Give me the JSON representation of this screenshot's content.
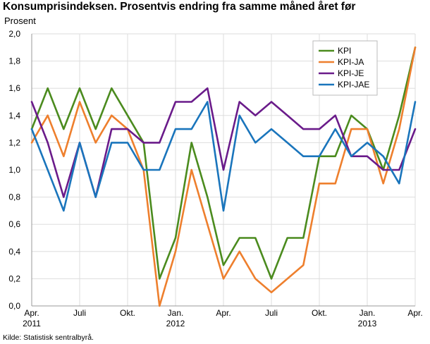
{
  "chart_data": {
    "type": "line",
    "title": "Konsumprisindeksen. Prosentvis endring fra samme måned året før",
    "ylabel": "Prosent",
    "xlabel": "",
    "source": "Kilde: Statistisk sentralbyrå.",
    "ylim": [
      0,
      2.0
    ],
    "y_ticks": [
      "0,0",
      "0,2",
      "0,4",
      "0,6",
      "0,8",
      "1,0",
      "1,2",
      "1,4",
      "1,6",
      "1,8",
      "2,0"
    ],
    "x_ticks": [
      {
        "index": 0,
        "label": "Apr.",
        "sub": "2011"
      },
      {
        "index": 3,
        "label": "Juli",
        "sub": ""
      },
      {
        "index": 6,
        "label": "Okt.",
        "sub": ""
      },
      {
        "index": 9,
        "label": "Jan.",
        "sub": "2012"
      },
      {
        "index": 12,
        "label": "Apr.",
        "sub": ""
      },
      {
        "index": 15,
        "label": "Juli",
        "sub": ""
      },
      {
        "index": 18,
        "label": "Okt.",
        "sub": ""
      },
      {
        "index": 21,
        "label": "Jan.",
        "sub": "2013"
      },
      {
        "index": 24,
        "label": "Apr.",
        "sub": ""
      }
    ],
    "series": [
      {
        "name": "KPI",
        "color": "#4b8b1e",
        "values": [
          1.3,
          1.6,
          1.3,
          1.6,
          1.3,
          1.6,
          1.4,
          1.2,
          0.2,
          0.5,
          1.2,
          0.8,
          0.3,
          0.5,
          0.5,
          0.2,
          0.5,
          0.5,
          1.1,
          1.1,
          1.4,
          1.3,
          1.0,
          1.4,
          1.9
        ]
      },
      {
        "name": "KPI-JA",
        "color": "#ee7f2d",
        "values": [
          1.2,
          1.4,
          1.1,
          1.5,
          1.2,
          1.4,
          1.3,
          1.0,
          0.0,
          0.4,
          1.0,
          0.6,
          0.2,
          0.4,
          0.2,
          0.1,
          0.2,
          0.3,
          0.9,
          0.9,
          1.3,
          1.3,
          0.9,
          1.3,
          1.9
        ]
      },
      {
        "name": "KPI-JE",
        "color": "#6a1b8a",
        "values": [
          1.5,
          1.2,
          0.8,
          1.2,
          0.8,
          1.3,
          1.3,
          1.2,
          1.2,
          1.5,
          1.5,
          1.6,
          1.0,
          1.5,
          1.4,
          1.5,
          1.4,
          1.3,
          1.3,
          1.4,
          1.1,
          1.1,
          1.0,
          1.0,
          1.3
        ]
      },
      {
        "name": "KPI-JAE",
        "color": "#1a75bc",
        "values": [
          1.3,
          1.0,
          0.7,
          1.2,
          0.8,
          1.2,
          1.2,
          1.0,
          1.0,
          1.3,
          1.3,
          1.5,
          0.7,
          1.4,
          1.2,
          1.3,
          1.2,
          1.1,
          1.1,
          1.3,
          1.1,
          1.2,
          1.1,
          0.9,
          1.5
        ]
      }
    ],
    "legend_position": "top-right",
    "grid": true
  }
}
